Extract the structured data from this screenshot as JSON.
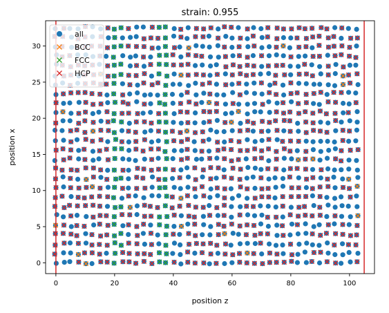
{
  "chart_data": {
    "type": "scatter",
    "title": "strain: 0.955",
    "xlabel": "position z",
    "ylabel": "position x",
    "xlim": [
      -3.5,
      108.5
    ],
    "ylim": [
      -1.5,
      33.5
    ],
    "xticks": [
      0,
      20,
      40,
      60,
      80,
      100
    ],
    "yticks": [
      0,
      5,
      10,
      15,
      20,
      25,
      30
    ],
    "grid": false,
    "legend_position": "top-left",
    "vlines": [
      0,
      105
    ],
    "vline_color": "#d62728",
    "lattice": {
      "z_range": [
        0,
        104
      ],
      "x_range": [
        0,
        32.5
      ],
      "row_spacing": 1.3,
      "column_spacing": 2.5
    },
    "series": [
      {
        "name": "all",
        "marker": "circle",
        "color": "#1f77b4"
      },
      {
        "name": "BCC",
        "marker": "x",
        "color": "#ff7f0e"
      },
      {
        "name": "FCC",
        "marker": "x",
        "color": "#2ca02c",
        "columns_z": [
          21,
          36.5
        ]
      },
      {
        "name": "HCP",
        "marker": "x",
        "color": "#d62728"
      }
    ]
  }
}
